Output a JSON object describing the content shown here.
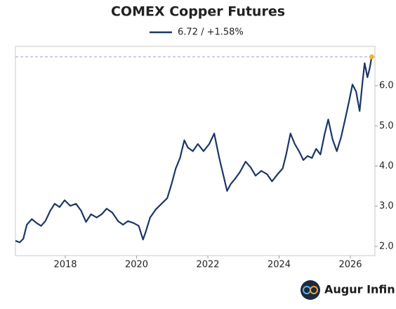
{
  "chart_data": {
    "type": "line",
    "title": "COMEX Copper Futures",
    "series": [
      {
        "name": "6.72 / +1.58%",
        "color": "#1b3668",
        "x": [
          2016.6,
          2016.72,
          2016.82,
          2016.92,
          2017.06,
          2017.2,
          2017.32,
          2017.44,
          2017.58,
          2017.7,
          2017.84,
          2017.98,
          2018.14,
          2018.3,
          2018.44,
          2018.58,
          2018.72,
          2018.88,
          2019.02,
          2019.16,
          2019.32,
          2019.48,
          2019.62,
          2019.76,
          2019.92,
          2020.06,
          2020.18,
          2020.26,
          2020.38,
          2020.54,
          2020.7,
          2020.86,
          2020.98,
          2021.1,
          2021.22,
          2021.34,
          2021.44,
          2021.58,
          2021.72,
          2021.88,
          2022.04,
          2022.18,
          2022.32,
          2022.44,
          2022.54,
          2022.64,
          2022.76,
          2022.9,
          2023.06,
          2023.2,
          2023.34,
          2023.5,
          2023.66,
          2023.8,
          2023.96,
          2024.1,
          2024.2,
          2024.32,
          2024.44,
          2024.56,
          2024.68,
          2024.8,
          2024.92,
          2025.04,
          2025.16,
          2025.28,
          2025.38,
          2025.5,
          2025.62,
          2025.74,
          2025.86,
          2025.96,
          2026.06,
          2026.16,
          2026.26,
          2026.34,
          2026.4,
          2026.48,
          2026.54,
          2026.6
        ],
        "values": [
          2.14,
          2.1,
          2.19,
          2.54,
          2.68,
          2.58,
          2.51,
          2.63,
          2.89,
          3.06,
          2.98,
          3.15,
          3.01,
          3.06,
          2.89,
          2.61,
          2.8,
          2.72,
          2.8,
          2.94,
          2.84,
          2.63,
          2.54,
          2.63,
          2.58,
          2.51,
          2.17,
          2.37,
          2.72,
          2.92,
          3.06,
          3.2,
          3.55,
          3.94,
          4.2,
          4.64,
          4.46,
          4.37,
          4.55,
          4.37,
          4.55,
          4.81,
          4.2,
          3.76,
          3.38,
          3.55,
          3.68,
          3.85,
          4.11,
          3.97,
          3.76,
          3.88,
          3.8,
          3.62,
          3.8,
          3.94,
          4.29,
          4.81,
          4.55,
          4.37,
          4.15,
          4.25,
          4.2,
          4.43,
          4.29,
          4.81,
          5.16,
          4.67,
          4.37,
          4.72,
          5.19,
          5.6,
          6.03,
          5.86,
          5.37,
          6.07,
          6.56,
          6.21,
          6.42,
          6.72
        ]
      }
    ],
    "xlim": [
      2016.6,
      2026.69
    ],
    "xticks": [
      2018,
      2020,
      2022,
      2024,
      2026
    ],
    "ylim": [
      1.77,
      6.98
    ],
    "yticks": [
      {
        "value": 2,
        "label": "2.0"
      },
      {
        "value": 3,
        "label": "3.0"
      },
      {
        "value": 4,
        "label": "4.0"
      },
      {
        "value": 5,
        "label": "5.0"
      },
      {
        "value": 6,
        "label": "6.0"
      }
    ],
    "legend": "top"
  },
  "footer": {
    "brand": "Augur Infinity"
  }
}
